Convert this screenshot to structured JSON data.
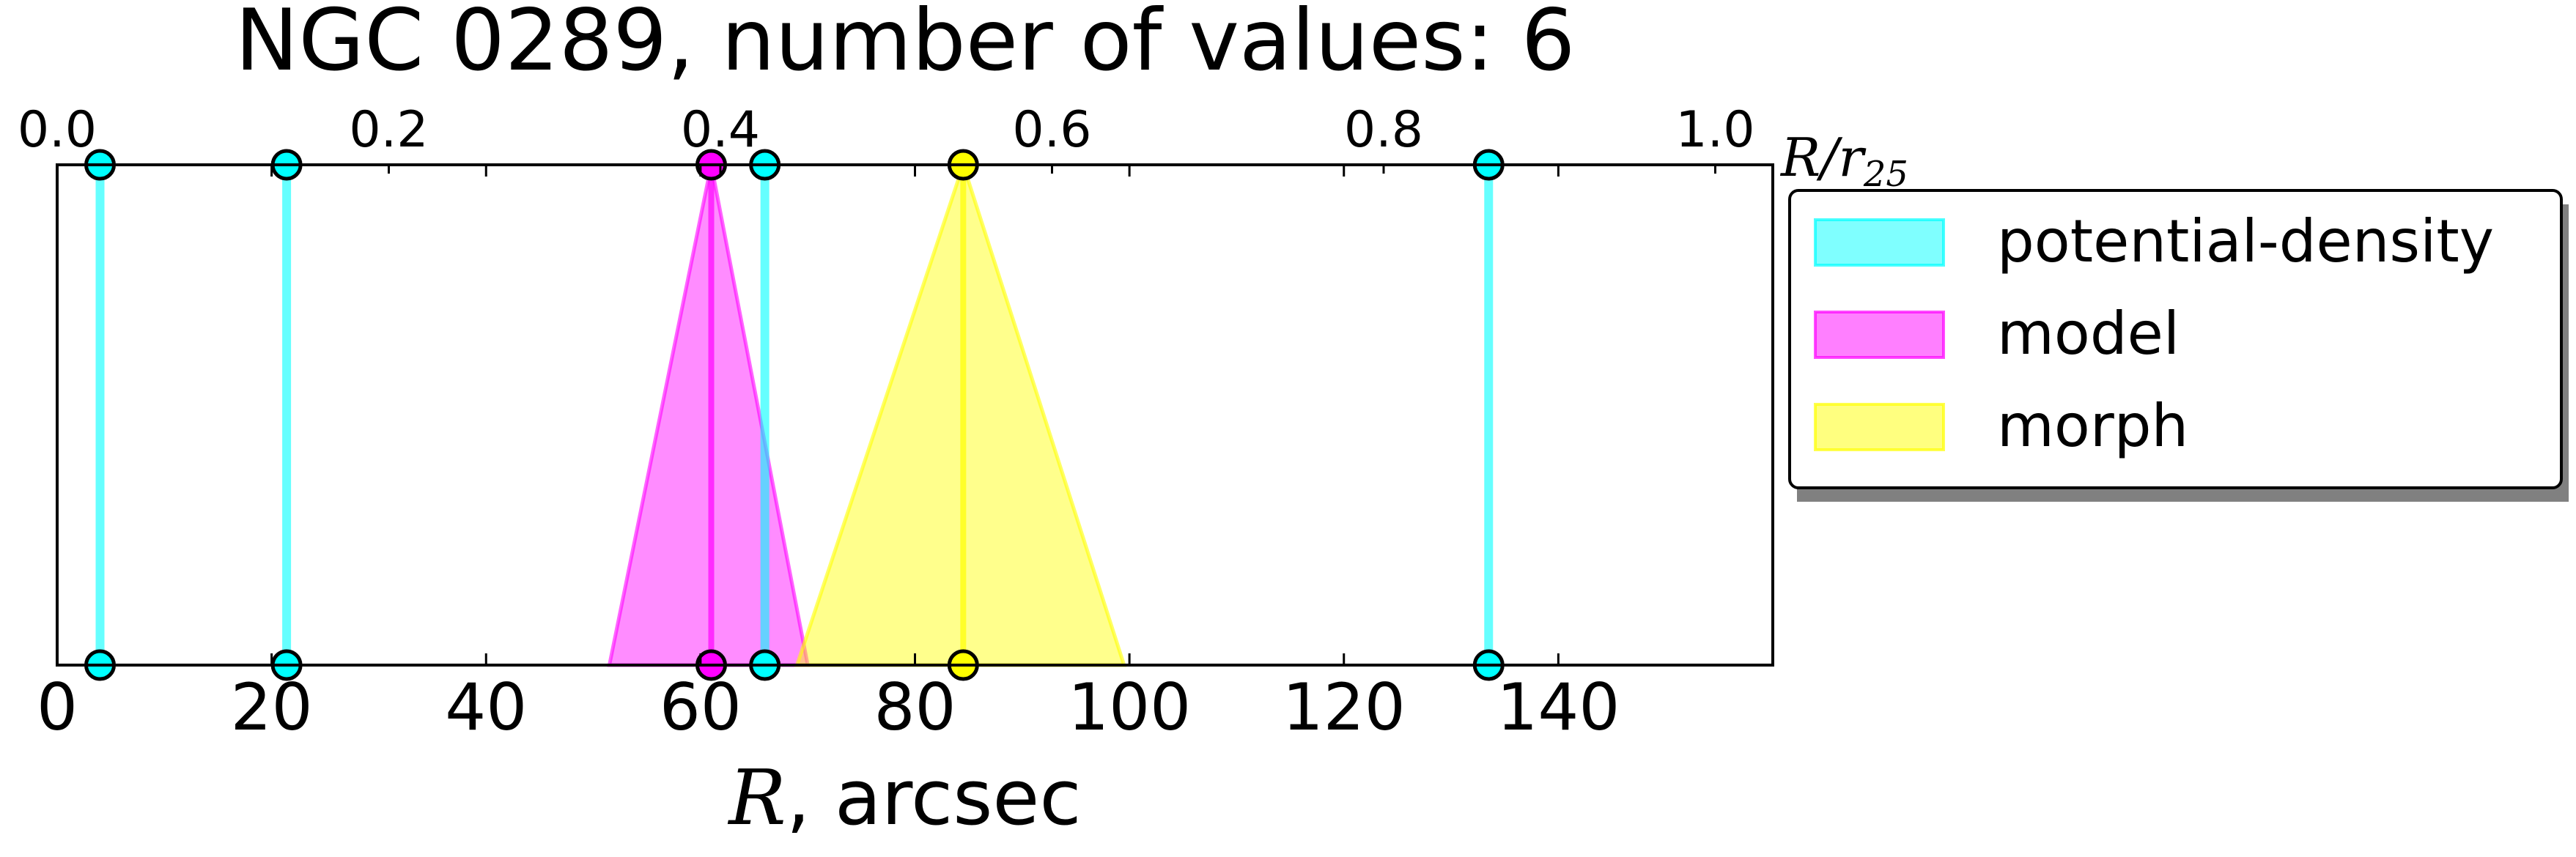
{
  "chart_data": {
    "type": "area",
    "title": "NGC 0289, number of values: 6",
    "xlabel_var": "R",
    "xlabel_unit": ", arcsec",
    "xlim": [
      0,
      160
    ],
    "x_ticks": [
      0,
      20,
      40,
      60,
      80,
      100,
      120,
      140
    ],
    "x_tick_labels": [
      "0",
      "20",
      "40",
      "60",
      "80",
      "100",
      "120",
      "140"
    ],
    "secondary_axis": {
      "label_main": "R/r",
      "label_sub": "25",
      "xlim": [
        0,
        1.0347
      ],
      "ticks": [
        0.0,
        0.2,
        0.4,
        0.6,
        0.8,
        1.0
      ],
      "tick_labels": [
        "0.0",
        "0.2",
        "0.4",
        "0.6",
        "0.8",
        "1.0"
      ]
    },
    "ylim": [
      0,
      1
    ],
    "legend_position": "right",
    "series": [
      {
        "name": "potential-density",
        "color": "#00ffff",
        "kind": "lines",
        "values": [
          4.0,
          21.4,
          66.0,
          133.5
        ]
      },
      {
        "name": "model",
        "color": "#ff00ff",
        "kind": "triangles",
        "triangles": [
          {
            "center": 61.0,
            "low": 51.5,
            "high": 70.0
          }
        ]
      },
      {
        "name": "morph",
        "color": "#ffff00",
        "kind": "triangles",
        "triangles": [
          {
            "center": 84.5,
            "low": 69.0,
            "high": 99.5
          }
        ]
      }
    ]
  }
}
